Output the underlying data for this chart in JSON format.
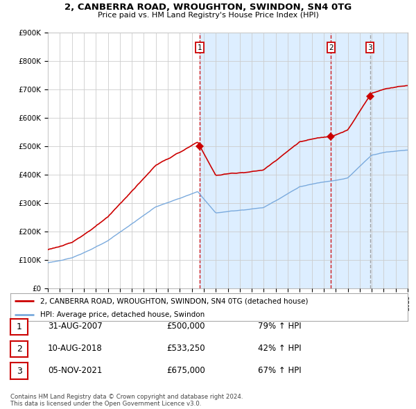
{
  "title": "2, CANBERRA ROAD, WROUGHTON, SWINDON, SN4 0TG",
  "subtitle": "Price paid vs. HM Land Registry's House Price Index (HPI)",
  "ylim": [
    0,
    900000
  ],
  "yticks": [
    0,
    100000,
    200000,
    300000,
    400000,
    500000,
    600000,
    700000,
    800000,
    900000
  ],
  "ytick_labels": [
    "£0",
    "£100K",
    "£200K",
    "£300K",
    "£400K",
    "£500K",
    "£600K",
    "£700K",
    "£800K",
    "£900K"
  ],
  "sale_color": "#cc0000",
  "hpi_color": "#7aaadd",
  "shade_color": "#ddeeff",
  "background_color": "#ffffff",
  "grid_color": "#cccccc",
  "sales": [
    {
      "date_year": 2007.67,
      "price": 500000,
      "label": "1",
      "vline_color": "#cc0000",
      "vline_style": "--"
    },
    {
      "date_year": 2018.61,
      "price": 533250,
      "label": "2",
      "vline_color": "#cc0000",
      "vline_style": "--"
    },
    {
      "date_year": 2021.85,
      "price": 675000,
      "label": "3",
      "vline_color": "#999999",
      "vline_style": "--"
    }
  ],
  "legend_sale_label": "2, CANBERRA ROAD, WROUGHTON, SWINDON, SN4 0TG (detached house)",
  "legend_hpi_label": "HPI: Average price, detached house, Swindon",
  "table_rows": [
    {
      "num": "1",
      "date": "31-AUG-2007",
      "price": "£500,000",
      "change": "79% ↑ HPI"
    },
    {
      "num": "2",
      "date": "10-AUG-2018",
      "price": "£533,250",
      "change": "42% ↑ HPI"
    },
    {
      "num": "3",
      "date": "05-NOV-2021",
      "price": "£675,000",
      "change": "67% ↑ HPI"
    }
  ],
  "footer": "Contains HM Land Registry data © Crown copyright and database right 2024.\nThis data is licensed under the Open Government Licence v3.0.",
  "xmin": 1995,
  "xmax": 2025
}
